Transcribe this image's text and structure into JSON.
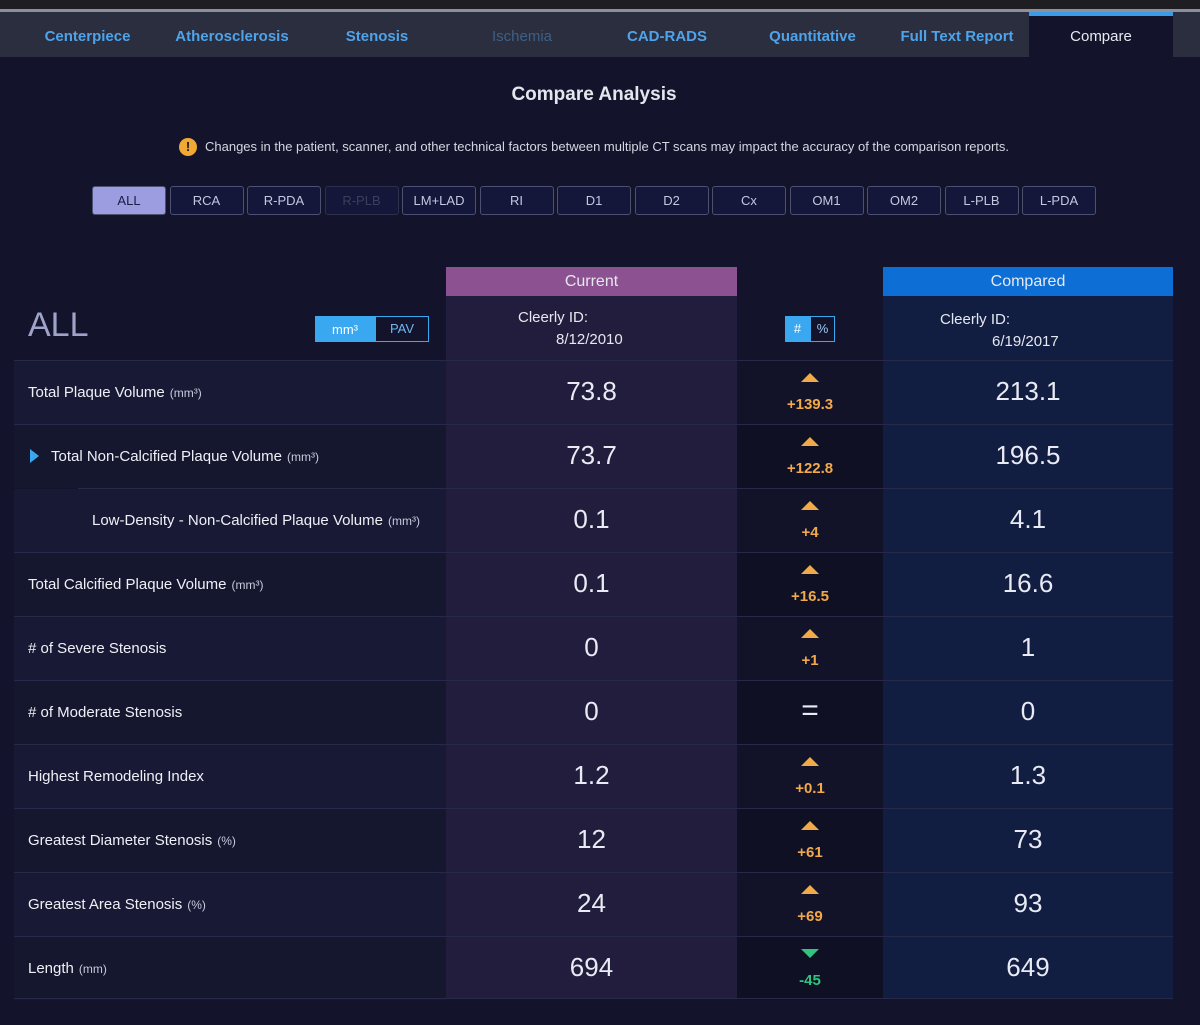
{
  "tabs": [
    "Centerpiece",
    "Atherosclerosis",
    "Stenosis",
    "Ischemia",
    "CAD-RADS",
    "Quantitative",
    "Full Text Report",
    "Compare"
  ],
  "title": "Compare Analysis",
  "warning": "Changes in the patient, scanner, and other technical factors between multiple CT scans may impact the accuracy of the comparison reports.",
  "filters": [
    "ALL",
    "RCA",
    "R-PDA",
    "R-PLB",
    "LM+LAD",
    "RI",
    "D1",
    "D2",
    "Cx",
    "OM1",
    "OM2",
    "L-PLB",
    "L-PDA"
  ],
  "selection": "ALL",
  "unit_toggle": [
    "mm³",
    "PAV"
  ],
  "diff_toggle": [
    "#",
    "%"
  ],
  "current": {
    "header": "Current",
    "id_label": "Cleerly ID:",
    "date": "8/12/2010"
  },
  "compared": {
    "header": "Compared",
    "id_label": "Cleerly ID:",
    "date": "6/19/2017"
  },
  "rows": [
    {
      "label": "Total Plaque Volume",
      "unit": "(mm³)",
      "current": "73.8",
      "change": "+139.3",
      "compared": "213.1"
    },
    {
      "label": "Total Non-Calcified Plaque Volume",
      "unit": "(mm³)",
      "current": "73.7",
      "change": "+122.8",
      "compared": "196.5"
    },
    {
      "label": "Low-Density - Non-Calcified Plaque Volume",
      "unit": "(mm³)",
      "current": "0.1",
      "change": "+4",
      "compared": "4.1"
    },
    {
      "label": "Total Calcified Plaque Volume",
      "unit": "(mm³)",
      "current": "0.1",
      "change": "+16.5",
      "compared": "16.6"
    },
    {
      "label": "# of Severe Stenosis",
      "current": "0",
      "change": "+1",
      "compared": "1"
    },
    {
      "label": "# of Moderate Stenosis",
      "current": "0",
      "change": "=",
      "compared": "0"
    },
    {
      "label": "Highest Remodeling Index",
      "current": "1.2",
      "change": "+0.1",
      "compared": "1.3"
    },
    {
      "label": "Greatest Diameter Stenosis",
      "unit": "(%)",
      "current": "12",
      "change": "+61",
      "compared": "73"
    },
    {
      "label": "Greatest Area Stenosis",
      "unit": "(%)",
      "current": "24",
      "change": "+69",
      "compared": "93"
    },
    {
      "label": "Length",
      "unit": "(mm)",
      "current": "694",
      "change": "-45",
      "compared": "649"
    }
  ]
}
